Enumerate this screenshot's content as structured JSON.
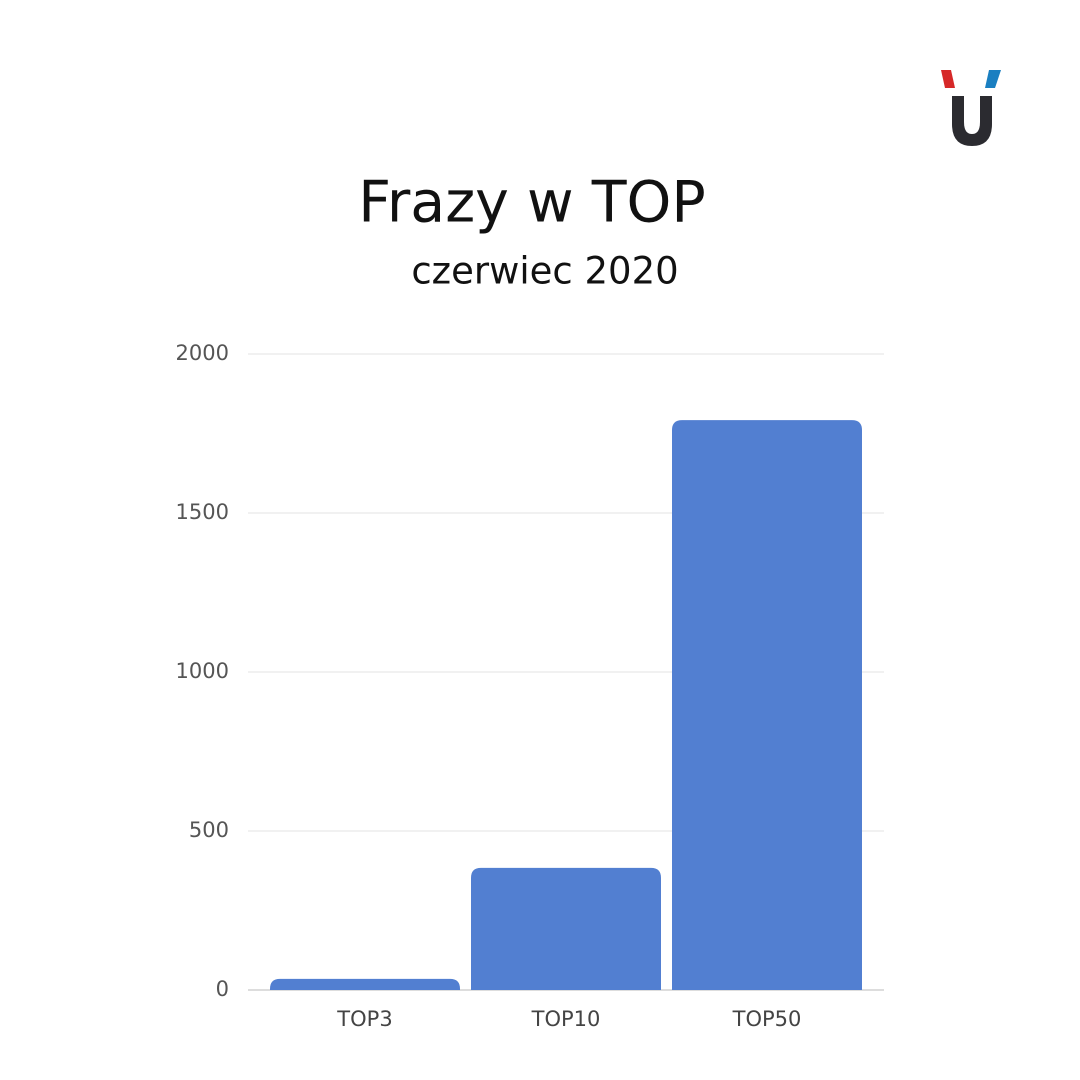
{
  "chart_data": {
    "type": "bar",
    "title": "Frazy w TOP",
    "subtitle": "czerwiec 2020",
    "categories": [
      "TOP3",
      "TOP10",
      "TOP50"
    ],
    "values": [
      35,
      384,
      1792
    ],
    "color": "#527fd1",
    "ylim": [
      0,
      2000
    ],
    "yticks": [
      0,
      500,
      1000,
      1500,
      2000
    ],
    "grid": true
  }
}
